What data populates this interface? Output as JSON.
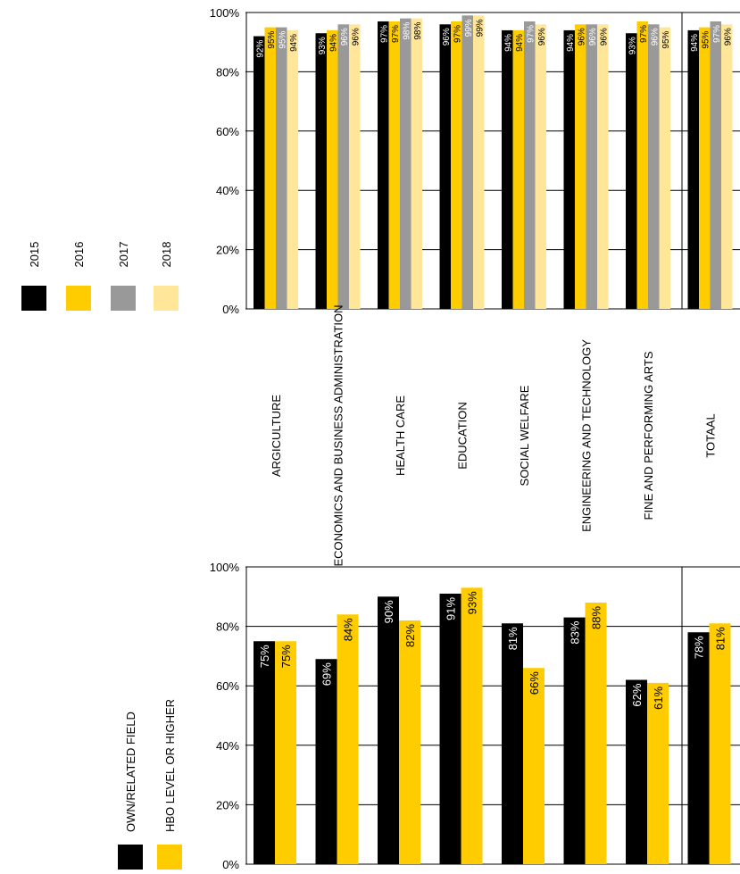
{
  "legend_top": {
    "items": [
      {
        "label": "2015",
        "color": "#000000"
      },
      {
        "label": "2016",
        "color": "#FFCC00"
      },
      {
        "label": "2017",
        "color": "#999999"
      },
      {
        "label": "2018",
        "color": "#FFE699"
      }
    ]
  },
  "legend_bottom": {
    "items": [
      {
        "label": "OWN/RELATED FIELD",
        "color": "#000000"
      },
      {
        "label": "HBO LEVEL OR HIGHER",
        "color": "#FFCC00"
      }
    ]
  },
  "chart_data": [
    {
      "type": "bar",
      "categories": [
        "ARGICULTURE",
        "ECONOMICS AND BUSINESS ADMINISTRATION",
        "HEALTH CARE",
        "EDUCATION",
        "SOCIAL WELFARE",
        "ENGINEERING AND TECHNOLOGY",
        "FINE AND PERFORMING ARTS",
        "TOTAAL"
      ],
      "y_ticks": [
        "0%",
        "20%",
        "40%",
        "60%",
        "80%",
        "100%"
      ],
      "ylim": [
        0,
        100
      ],
      "series": [
        {
          "name": "2015",
          "values": [
            92,
            93,
            97,
            96,
            94,
            94,
            93,
            94
          ],
          "labels": [
            "92%",
            "93%",
            "97%",
            "96%",
            "94%",
            "94%",
            "93%",
            "94%"
          ]
        },
        {
          "name": "2016",
          "values": [
            95,
            94,
            97,
            97,
            94,
            96,
            97,
            95
          ],
          "labels": [
            "95%",
            "94%",
            "97%",
            "97%",
            "94%",
            "96%",
            "97%",
            "95%"
          ]
        },
        {
          "name": "2017",
          "values": [
            95,
            96,
            98,
            99,
            97,
            96,
            96,
            97
          ],
          "labels": [
            "95%",
            "96%",
            "98%",
            "99%",
            "97%",
            "96%",
            "96%",
            "97%"
          ]
        },
        {
          "name": "2018",
          "values": [
            94,
            96,
            98,
            99,
            96,
            96,
            95,
            96
          ],
          "labels": [
            "94%",
            "96%",
            "98%",
            "99%",
            "96%",
            "96%",
            "95%",
            "96%"
          ]
        }
      ],
      "grid": true
    },
    {
      "type": "bar",
      "categories": [
        "ARGICULTURE",
        "ECONOMICS AND BUSINESS ADMINISTRATION",
        "HEALTH CARE",
        "EDUCATION",
        "SOCIAL WELFARE",
        "ENGINEERING AND TECHNOLOGY",
        "FINE AND PERFORMING ARTS",
        "TOTAAL"
      ],
      "y_ticks": [
        "0%",
        "20%",
        "40%",
        "60%",
        "80%",
        "100%"
      ],
      "ylim": [
        0,
        100
      ],
      "series": [
        {
          "name": "OWN/RELATED FIELD",
          "values": [
            75,
            69,
            90,
            91,
            81,
            83,
            62,
            78
          ],
          "labels": [
            "75%",
            "69%",
            "90%",
            "91%",
            "81%",
            "83%",
            "62%",
            "78%"
          ]
        },
        {
          "name": "HBO LEVEL OR HIGHER",
          "values": [
            75,
            84,
            82,
            93,
            66,
            88,
            61,
            81
          ],
          "labels": [
            "75%",
            "84%",
            "82%",
            "93%",
            "66%",
            "88%",
            "61%",
            "81%"
          ]
        }
      ],
      "grid": true
    }
  ]
}
